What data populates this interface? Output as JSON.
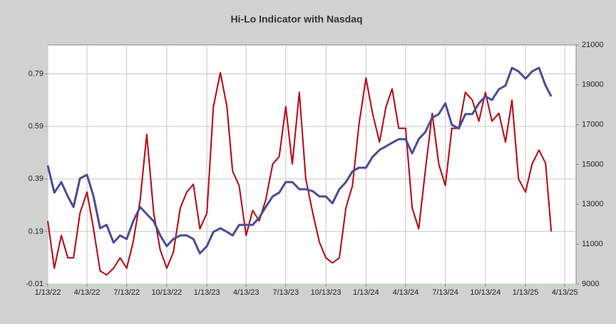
{
  "chart_data": {
    "type": "line",
    "title": "Hi-Lo Indicator with Nasdaq",
    "x": [
      "1/13/22",
      "1/28/22",
      "2/13/22",
      "2/28/22",
      "3/13/22",
      "3/28/22",
      "4/13/22",
      "4/28/22",
      "5/13/22",
      "5/28/22",
      "6/13/22",
      "6/28/22",
      "7/13/22",
      "7/28/22",
      "8/13/22",
      "8/28/22",
      "9/13/22",
      "9/28/22",
      "10/13/22",
      "10/28/22",
      "11/13/22",
      "11/28/22",
      "12/13/22",
      "12/28/22",
      "1/13/23",
      "1/28/23",
      "2/13/23",
      "2/28/23",
      "3/13/23",
      "3/28/23",
      "4/13/23",
      "4/28/23",
      "5/13/23",
      "5/28/23",
      "6/13/23",
      "6/28/23",
      "7/13/23",
      "7/28/23",
      "8/13/23",
      "8/28/23",
      "9/13/23",
      "9/28/23",
      "10/13/23",
      "10/28/23",
      "11/13/23",
      "11/28/23",
      "12/13/23",
      "12/28/23",
      "1/13/24",
      "1/28/24",
      "2/13/24",
      "2/28/24",
      "3/13/24",
      "3/28/24",
      "4/13/24",
      "4/28/24",
      "5/13/24",
      "5/28/24",
      "6/13/24",
      "6/28/24",
      "7/13/24",
      "7/28/24",
      "8/13/24",
      "8/28/24",
      "9/13/24",
      "9/28/24",
      "10/13/24",
      "10/28/24",
      "11/13/24",
      "11/28/24",
      "12/13/24",
      "12/28/24",
      "1/13/25",
      "1/28/25",
      "2/13/25",
      "2/28/25",
      "3/13/25"
    ],
    "series": [
      {
        "color": "#c00010",
        "axis": "y",
        "values": [
          0.23,
          0.05,
          0.175,
          0.09,
          0.09,
          0.26,
          0.34,
          0.2,
          0.04,
          0.025,
          0.05,
          0.09,
          0.05,
          0.15,
          0.31,
          0.56,
          0.26,
          0.12,
          0.05,
          0.11,
          0.28,
          0.34,
          0.37,
          0.2,
          0.26,
          0.665,
          0.795,
          0.665,
          0.42,
          0.365,
          0.175,
          0.27,
          0.23,
          0.31,
          0.447,
          0.475,
          0.665,
          0.447,
          0.72,
          0.39,
          0.26,
          0.15,
          0.09,
          0.07,
          0.09,
          0.28,
          0.365,
          0.597,
          0.774,
          0.64,
          0.53,
          0.665,
          0.733,
          0.583,
          0.583,
          0.28,
          0.2,
          0.42,
          0.64,
          0.447,
          0.365,
          0.583,
          0.583,
          0.72,
          0.69,
          0.61,
          0.72,
          0.61,
          0.64,
          0.53,
          0.69,
          0.39,
          0.34,
          0.447,
          0.5,
          0.45,
          0.19
        ]
      },
      {
        "color": "#4b4b9b",
        "axis": "y2",
        "values": [
          14950,
          13590,
          14120,
          13400,
          12870,
          14300,
          14480,
          13400,
          11800,
          11970,
          11080,
          11440,
          11260,
          12150,
          12870,
          12510,
          12150,
          11440,
          10900,
          11260,
          11440,
          11440,
          11260,
          10540,
          10900,
          11620,
          11800,
          11620,
          11440,
          11970,
          11970,
          11970,
          12330,
          12870,
          13400,
          13590,
          14120,
          14120,
          13760,
          13760,
          13660,
          13400,
          13400,
          13050,
          13760,
          14120,
          14660,
          14840,
          14840,
          15380,
          15730,
          15910,
          16090,
          16270,
          16270,
          15560,
          16270,
          16630,
          17350,
          17530,
          18070,
          16990,
          16810,
          17530,
          17530,
          18070,
          18420,
          18240,
          18780,
          18960,
          19850,
          19670,
          19310,
          19670,
          19850,
          18960,
          18420
        ]
      }
    ],
    "xlim": [
      "1/13/22",
      "5/9/25"
    ],
    "xticks": [
      "1/13/22",
      "4/13/22",
      "7/13/22",
      "10/13/22",
      "1/13/23",
      "4/13/23",
      "7/13/23",
      "10/13/23",
      "1/13/24",
      "4/13/24",
      "7/13/24",
      "10/13/24",
      "1/13/25",
      "4/13/25"
    ],
    "ylim": [
      -0.01,
      0.9
    ],
    "yticks": [
      -0.01,
      0.19,
      0.39,
      0.59,
      0.79
    ],
    "y2lim": [
      9000,
      21000
    ],
    "y2ticks": [
      9000,
      11000,
      13000,
      15000,
      17000,
      19000,
      21000
    ],
    "grid": true
  }
}
